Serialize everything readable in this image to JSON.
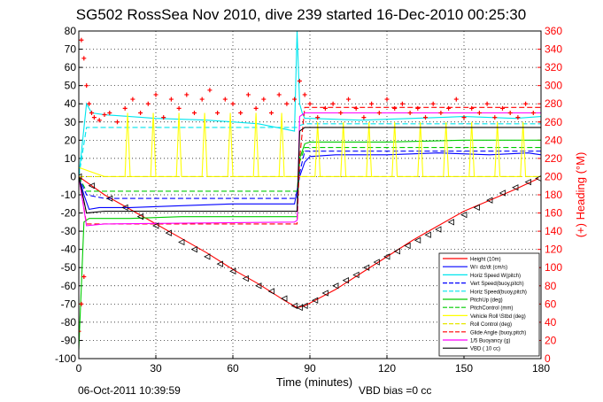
{
  "page": {
    "timestamp": "06-Oct-2011 10:39:59",
    "bias_note": "VBD bias =0 cc"
  },
  "chart_data": {
    "type": "line",
    "title": "SG502 RossSea Nov 2010, dive 239 started 16-Dec-2010 00:25:30",
    "xlabel": "Time (minutes)",
    "ylabel_right": "(+) Heading (°M)",
    "xlim": [
      0,
      180
    ],
    "ylim": [
      -100,
      80
    ],
    "ylim_right": [
      0,
      360
    ],
    "xticks": [
      0,
      30,
      60,
      90,
      120,
      150,
      180
    ],
    "yticks": [
      -100,
      -90,
      -80,
      -70,
      -60,
      -50,
      -40,
      -30,
      -20,
      -10,
      0,
      10,
      20,
      30,
      40,
      50,
      60,
      70,
      80
    ],
    "yticks_right": [
      0,
      20,
      40,
      60,
      80,
      100,
      120,
      140,
      160,
      180,
      200,
      220,
      240,
      260,
      280,
      300,
      320,
      340,
      360
    ],
    "grid": true,
    "legend_position": "bottom-right",
    "colors": {
      "height": "#ff0000",
      "w": "#0000ff",
      "horiz_speed_w": "#00e5ee",
      "vert_speed_buoy": "#0000ff",
      "horiz_speed_buoy": "#00e5ee",
      "pitch_up": "#00cc00",
      "pitch_control": "#00cc00",
      "vehicle_roll": "#ffff00",
      "roll_control": "#e6e600",
      "glide_angle": "#ff0000",
      "buoyancy": "#ff00ff",
      "vbd": "#000000",
      "heading": "#ff0000"
    },
    "series": [
      {
        "name": "Height (10m)",
        "key": "height",
        "style": "solid",
        "x": [
          0,
          2,
          10,
          20,
          30,
          40,
          50,
          60,
          70,
          80,
          85,
          88,
          100,
          110,
          120,
          130,
          140,
          150,
          160,
          170,
          179
        ],
        "y": [
          0,
          -2,
          -10,
          -18,
          -26,
          -34,
          -42,
          -51,
          -59,
          -68,
          -72,
          -71,
          -62,
          -53,
          -44,
          -35,
          -27,
          -19,
          -13,
          -7,
          -1
        ]
      },
      {
        "name": "W= dz/dt (cm/s)",
        "key": "w",
        "style": "solid",
        "x": [
          0,
          2,
          4,
          8,
          20,
          40,
          60,
          80,
          84,
          86,
          88,
          90,
          100,
          120,
          140,
          160,
          175,
          180
        ],
        "y": [
          0,
          -10,
          -18,
          -17,
          -17,
          -16,
          -15,
          -15,
          -15,
          0,
          8,
          11,
          12,
          12,
          13,
          12,
          13,
          12
        ]
      },
      {
        "name": "Horiz Speed W(pitch)",
        "key": "horiz_speed_w",
        "style": "solid",
        "x": [
          0,
          3,
          5,
          10,
          30,
          50,
          70,
          84,
          85,
          86,
          87,
          88,
          90,
          110,
          130,
          150,
          170,
          180
        ],
        "y": [
          0,
          40,
          35,
          34,
          32,
          31,
          29,
          25,
          80,
          40,
          35,
          32,
          32,
          31,
          32,
          33,
          32,
          33
        ]
      },
      {
        "name": "Vert Speed(buoy,pitch)",
        "key": "vert_speed_buoy",
        "style": "dashed",
        "x": [
          0,
          3,
          10,
          40,
          85,
          86,
          88,
          180
        ],
        "y": [
          0,
          -10,
          -12,
          -12,
          -12,
          2,
          14,
          14
        ]
      },
      {
        "name": "Horiz Speed(buoy,pitch)",
        "key": "horiz_speed_buoy",
        "style": "dashed",
        "x": [
          0,
          3,
          10,
          85,
          86,
          88,
          180
        ],
        "y": [
          0,
          27,
          27,
          27,
          28,
          29,
          29
        ]
      },
      {
        "name": "PitchUp (deg)",
        "key": "pitch_up",
        "style": "solid",
        "x": [
          0,
          2,
          4,
          8,
          20,
          40,
          60,
          85,
          86,
          88,
          90,
          120,
          150,
          180
        ],
        "y": [
          -95,
          -25,
          -23,
          -23,
          -23,
          -22,
          -22,
          -22,
          10,
          18,
          19,
          19,
          20,
          20
        ]
      },
      {
        "name": "PitchControl (mm)",
        "key": "pitch_control",
        "style": "dashed",
        "x": [
          0,
          3,
          10,
          85,
          86,
          88,
          180
        ],
        "y": [
          0,
          -8,
          -8,
          -8,
          8,
          16,
          16
        ]
      },
      {
        "name": "Vehicle Roll \\Stbd (deg)",
        "key": "vehicle_roll",
        "style": "solid",
        "x": [
          0,
          10,
          18,
          19,
          20,
          28,
          29,
          30,
          38,
          39,
          40,
          48,
          49,
          50,
          58,
          59,
          60,
          68,
          69,
          70,
          78,
          79,
          80,
          88,
          92,
          93,
          94,
          102,
          103,
          104,
          112,
          113,
          114,
          122,
          123,
          124,
          132,
          133,
          134,
          142,
          143,
          144,
          152,
          153,
          154,
          162,
          163,
          164,
          172,
          173,
          174,
          180
        ],
        "y": [
          5,
          0,
          0,
          35,
          0,
          0,
          35,
          0,
          0,
          35,
          0,
          0,
          35,
          0,
          0,
          35,
          0,
          0,
          35,
          0,
          0,
          35,
          0,
          0,
          0,
          30,
          0,
          0,
          30,
          0,
          0,
          30,
          0,
          0,
          30,
          0,
          0,
          30,
          0,
          0,
          30,
          0,
          0,
          30,
          0,
          0,
          30,
          0,
          0,
          30,
          0,
          0
        ]
      },
      {
        "name": "Roll Control (deg)",
        "key": "roll_control",
        "style": "dashed",
        "x": [
          0,
          180
        ],
        "y": [
          0,
          0
        ]
      },
      {
        "name": "Glide Angle (buoy,pitch)",
        "key": "glide_angle",
        "style": "dashed",
        "x": [
          0,
          3,
          10,
          85,
          86,
          88,
          180
        ],
        "y": [
          0,
          -26,
          -26,
          -26,
          10,
          38,
          38
        ]
      },
      {
        "name": "1/5 Buoyancy (g)",
        "key": "buoyancy",
        "style": "solid",
        "x": [
          0,
          3,
          10,
          84,
          85,
          86,
          88,
          180
        ],
        "y": [
          0,
          -27,
          -26,
          -25,
          -24,
          33,
          35,
          35
        ]
      },
      {
        "name": "VBD ( 10 cc)",
        "key": "vbd",
        "style": "solid",
        "x": [
          0,
          3,
          10,
          84,
          85,
          86,
          88,
          180
        ],
        "y": [
          0,
          -20,
          -19,
          -19,
          -19,
          25,
          27,
          27
        ]
      }
    ],
    "heading": {
      "name": "Heading (°M)",
      "axis": "right",
      "marker": "+",
      "x": [
        0,
        1,
        1,
        2,
        2,
        3,
        4,
        5,
        6,
        8,
        10,
        12,
        15,
        18,
        21,
        24,
        27,
        30,
        33,
        36,
        39,
        42,
        45,
        48,
        51,
        54,
        57,
        60,
        63,
        66,
        69,
        72,
        75,
        78,
        81,
        84,
        86,
        88,
        90,
        93,
        96,
        99,
        102,
        105,
        108,
        111,
        114,
        117,
        120,
        123,
        126,
        129,
        132,
        135,
        138,
        141,
        144,
        147,
        150,
        153,
        156,
        159,
        162,
        165,
        168,
        171,
        174,
        177,
        180
      ],
      "y": [
        30,
        350,
        60,
        330,
        90,
        300,
        280,
        270,
        265,
        262,
        268,
        270,
        260,
        275,
        285,
        270,
        280,
        290,
        265,
        285,
        275,
        290,
        270,
        285,
        295,
        270,
        285,
        280,
        270,
        290,
        275,
        285,
        270,
        290,
        280,
        285,
        305,
        290,
        280,
        265,
        275,
        280,
        270,
        285,
        275,
        265,
        280,
        270,
        285,
        275,
        280,
        270,
        275,
        265,
        280,
        270,
        275,
        285,
        265,
        275,
        270,
        280,
        265,
        275,
        270,
        265,
        280,
        270,
        260
      ]
    },
    "markers": {
      "name": "Height samples",
      "marker": "triangle",
      "x": [
        0,
        5,
        12,
        18,
        24,
        30,
        35,
        40,
        45,
        50,
        55,
        60,
        65,
        70,
        75,
        80,
        84,
        86,
        88,
        92,
        96,
        100,
        104,
        108,
        112,
        116,
        120,
        124,
        128,
        132,
        136,
        140,
        145,
        150,
        155,
        160,
        165,
        170,
        175,
        179
      ],
      "y": [
        0,
        -5,
        -12,
        -17,
        -22,
        -27,
        -31,
        -36,
        -40,
        -44,
        -48,
        -52,
        -56,
        -60,
        -63,
        -67,
        -71,
        -72,
        -71,
        -68,
        -64,
        -60,
        -57,
        -54,
        -50,
        -47,
        -44,
        -41,
        -38,
        -35,
        -32,
        -29,
        -25,
        -21,
        -17,
        -13,
        -9,
        -6,
        -3,
        -1
      ]
    }
  }
}
